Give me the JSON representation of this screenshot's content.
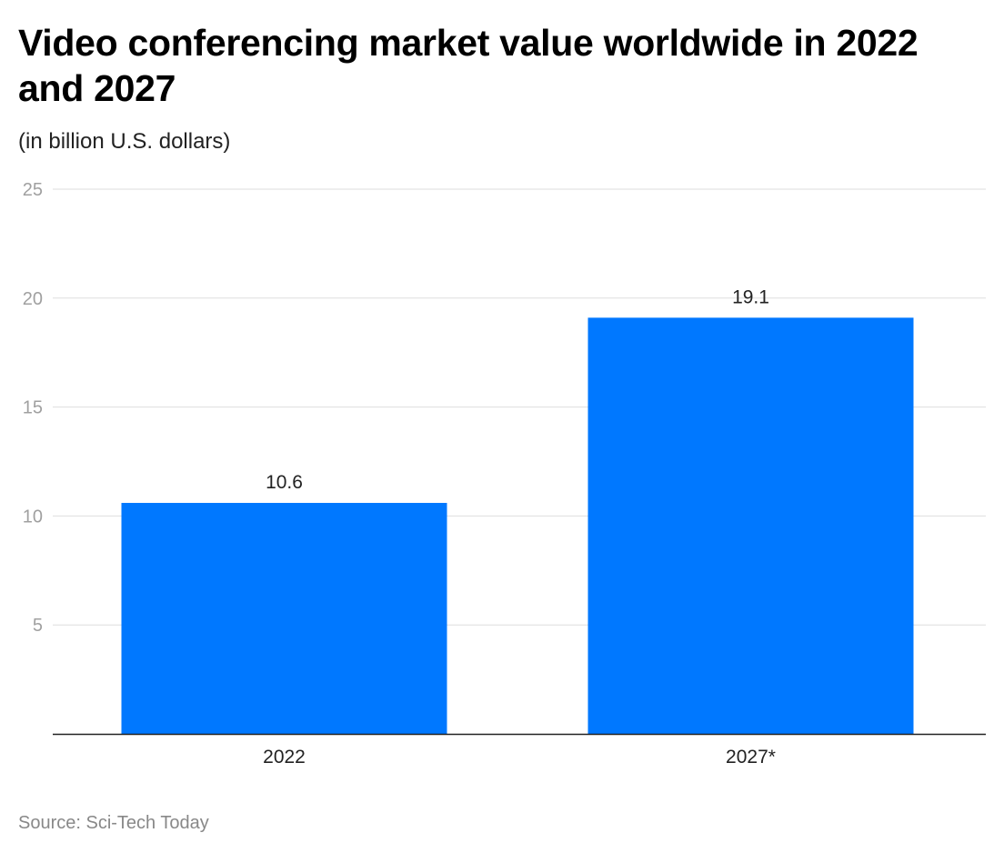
{
  "chart_data": {
    "type": "bar",
    "title": "Video conferencing market value worldwide in 2022 and 2027",
    "subtitle": "(in billion U.S. dollars)",
    "categories": [
      "2022",
      "2027*"
    ],
    "values": [
      10.6,
      19.1
    ],
    "value_labels": [
      "10.6",
      "19.1"
    ],
    "yticks": [
      5,
      10,
      15,
      20,
      25
    ],
    "ylim": [
      0,
      25
    ],
    "xlabel": "",
    "ylabel": "",
    "grid": true,
    "bar_color": "#0078ff",
    "source": "Source: Sci-Tech Today"
  }
}
